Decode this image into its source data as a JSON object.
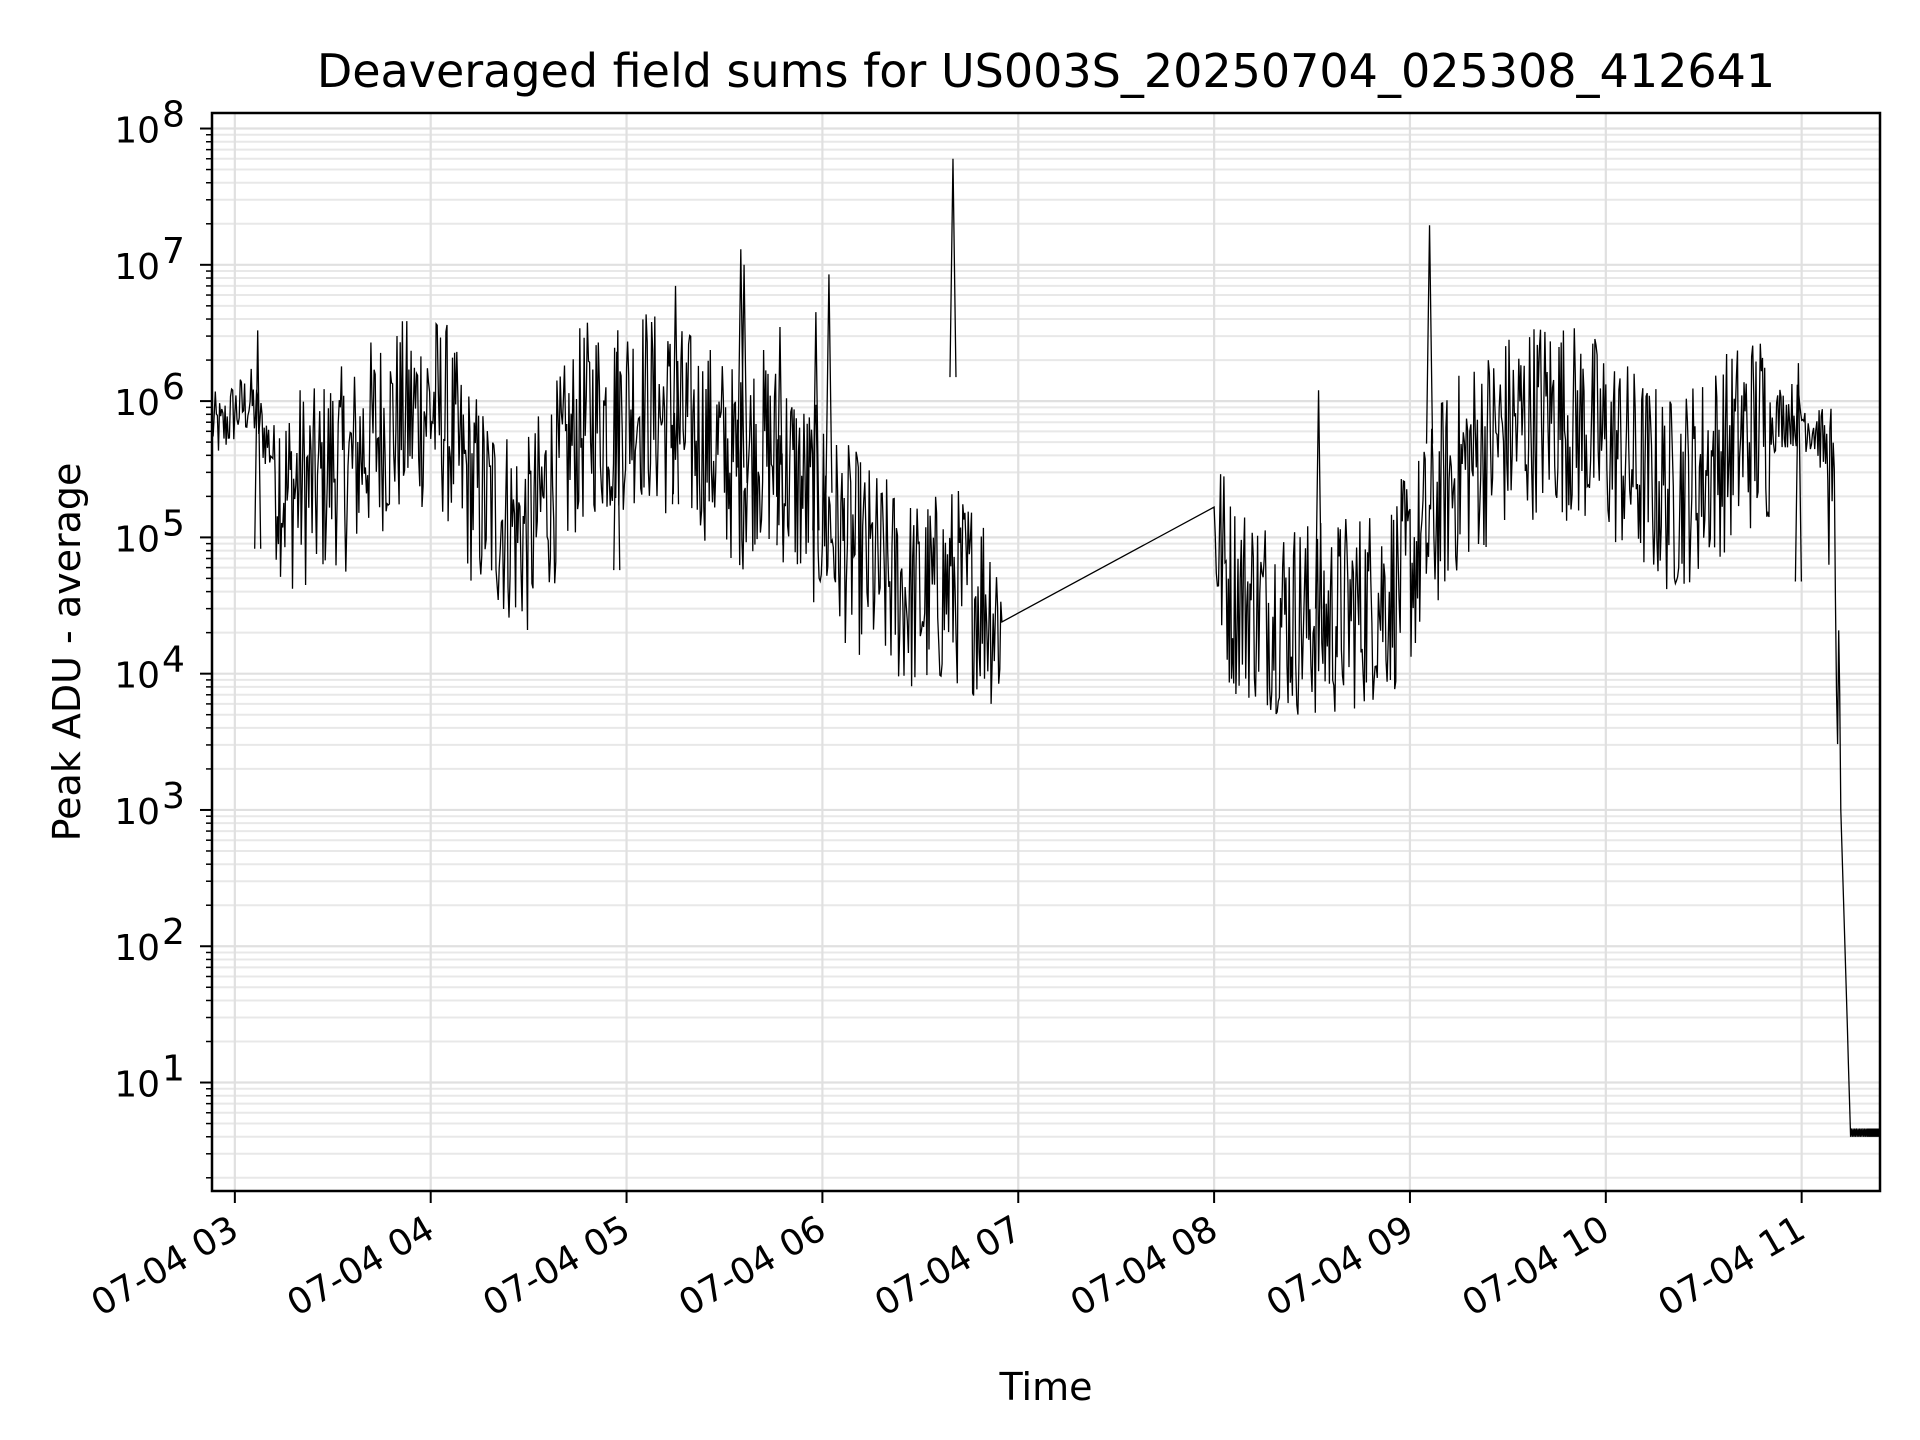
{
  "chart_data": {
    "type": "line",
    "title": "Deaveraged field sums for US003S_20250704_025308_412641",
    "xlabel": "Time",
    "ylabel": "Peak ADU - average",
    "y_scale": "log",
    "ylim": [
      1.6,
      130000000
    ],
    "xlim": [
      "07-04 02:53",
      "07-04 11:24"
    ],
    "grid": true,
    "line_color": "#000000",
    "x_ticks": [
      "07-04 03",
      "07-04 04",
      "07-04 05",
      "07-04 06",
      "07-04 07",
      "07-04 08",
      "07-04 09",
      "07-04 10",
      "07-04 11"
    ],
    "y_ticks": [
      10,
      100,
      1000,
      10000,
      100000,
      1000000,
      10000000,
      100000000
    ],
    "y_tick_labels": [
      "10",
      "10",
      "10",
      "10",
      "10",
      "10",
      "10",
      "10"
    ],
    "y_tick_exponents": [
      "1",
      "2",
      "3",
      "4",
      "5",
      "6",
      "7",
      "8"
    ],
    "series": [
      {
        "x": [
          "07-04 02:53",
          "07-04 02:56",
          "07-04 02:59",
          "07-04 03:02",
          "07-04 03:05",
          "07-04 03:08",
          "07-04 03:12",
          "07-04 03:16",
          "07-04 03:20",
          "07-04 03:25",
          "07-04 03:30",
          "07-04 03:35",
          "07-04 03:40",
          "07-04 03:45",
          "07-04 03:50",
          "07-04 03:55",
          "07-04 04:00",
          "07-04 04:05",
          "07-04 04:10",
          "07-04 04:15",
          "07-04 04:20",
          "07-04 04:25",
          "07-04 04:30",
          "07-04 04:35",
          "07-04 04:40",
          "07-04 04:45",
          "07-04 04:50",
          "07-04 04:55",
          "07-04 05:00",
          "07-04 05:05",
          "07-04 05:10",
          "07-04 05:15",
          "07-04 05:20",
          "07-04 05:25",
          "07-04 05:30",
          "07-04 05:35",
          "07-04 05:40",
          "07-04 05:45",
          "07-04 05:50",
          "07-04 05:55",
          "07-04 06:00",
          "07-04 06:05",
          "07-04 06:10",
          "07-04 06:15",
          "07-04 06:20",
          "07-04 06:25",
          "07-04 06:30",
          "07-04 06:35",
          "07-04 06:40",
          "07-04 06:45",
          "07-04 06:50",
          "07-04 06:55",
          "07-04 08:00",
          "07-04 08:05",
          "07-04 08:10",
          "07-04 08:15",
          "07-04 08:20",
          "07-04 08:25",
          "07-04 08:30",
          "07-04 08:35",
          "07-04 08:40",
          "07-04 08:45",
          "07-04 08:50",
          "07-04 08:55",
          "07-04 09:00",
          "07-04 09:05",
          "07-04 09:10",
          "07-04 09:15",
          "07-04 09:20",
          "07-04 09:25",
          "07-04 09:30",
          "07-04 09:35",
          "07-04 09:40",
          "07-04 09:45",
          "07-04 09:50",
          "07-04 09:55",
          "07-04 10:00",
          "07-04 10:05",
          "07-04 10:10",
          "07-04 10:15",
          "07-04 10:20",
          "07-04 10:25",
          "07-04 10:30",
          "07-04 10:35",
          "07-04 10:40",
          "07-04 10:45",
          "07-04 10:50",
          "07-04 10:55",
          "07-04 11:00",
          "07-04 11:05",
          "07-04 11:08",
          "07-04 11:10",
          "07-04 11:12",
          "07-04 11:15",
          "07-04 11:20",
          "07-04 11:24"
        ],
        "y": [
          700000,
          600000,
          800000,
          900000,
          1000000,
          650000,
          400000,
          200000,
          250000,
          220000,
          350000,
          300000,
          500000,
          600000,
          700000,
          800000,
          900000,
          700000,
          300000,
          200000,
          150000,
          120000,
          100000,
          200000,
          300000,
          600000,
          800000,
          700000,
          900000,
          1000000,
          800000,
          700000,
          600000,
          500000,
          400000,
          300000,
          500000,
          400000,
          300000,
          200000,
          150000,
          100000,
          80000,
          60000,
          50000,
          40000,
          35000,
          40000,
          45000,
          40000,
          35000,
          24000,
          120000,
          40000,
          35000,
          30000,
          28000,
          26000,
          25000,
          24000,
          28000,
          30000,
          35000,
          40000,
          60000,
          100000,
          200000,
          300000,
          400000,
          500000,
          600000,
          700000,
          800000,
          800000,
          700000,
          600000,
          500000,
          400000,
          300000,
          250000,
          200000,
          250000,
          300000,
          400000,
          500000,
          600000,
          700000,
          800000,
          800000,
          600000,
          400000,
          100000,
          1000,
          4,
          4,
          4
        ],
        "spikes": [
          {
            "x": "07-04 03:07",
            "y": 3300000
          },
          {
            "x": "07-04 04:57",
            "y": 2300000
          },
          {
            "x": "07-04 05:15",
            "y": 7000000
          },
          {
            "x": "07-04 05:35",
            "y": 13000000
          },
          {
            "x": "07-04 05:36",
            "y": 10000000
          },
          {
            "x": "07-04 05:47",
            "y": 3500000
          },
          {
            "x": "07-04 05:58",
            "y": 4500000
          },
          {
            "x": "07-04 06:02",
            "y": 8500000
          },
          {
            "x": "07-04 06:40",
            "y": 60000000
          },
          {
            "x": "07-04 08:32",
            "y": 1200000
          },
          {
            "x": "07-04 09:06",
            "y": 19500000
          },
          {
            "x": "07-04 10:59",
            "y": 1900000
          }
        ]
      }
    ]
  }
}
